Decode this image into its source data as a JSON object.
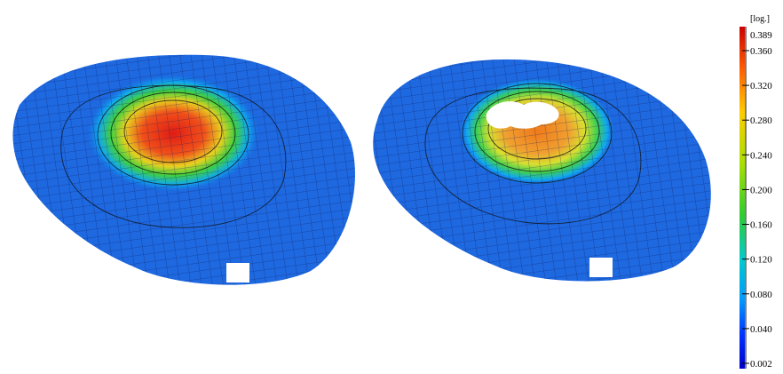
{
  "colorbar": {
    "unit": "[log.]",
    "max_label": "0.389",
    "tick_labels": [
      "0.360",
      "0.320",
      "0.280",
      "0.240",
      "0.200",
      "0.160",
      "0.120",
      "0.080",
      "0.040",
      "0.002"
    ],
    "colors": [
      "#cc0000",
      "#ff6a00",
      "#ffcc00",
      "#99e600",
      "#33cc33",
      "#00cccc",
      "#0099ff",
      "#0033ff",
      "#0000cc"
    ]
  },
  "panels": [
    {
      "name": "left-surface-plot",
      "peak_color": "#e8301c",
      "has_hole_at_peak": false
    },
    {
      "name": "right-surface-plot",
      "peak_color": "#f08a20",
      "has_hole_at_peak": true
    }
  ]
}
